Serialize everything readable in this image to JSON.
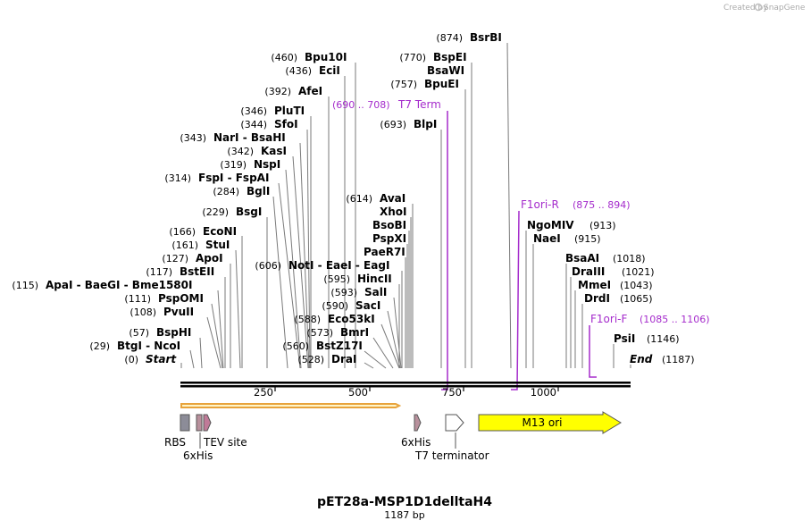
{
  "credit": {
    "created_by": "Created by",
    "brand": "SnapGene"
  },
  "map": {
    "title": "pET28a-MSP1D1delltaH4",
    "length_label": "1187 bp",
    "length": 1187,
    "ticks": [
      "250",
      "500",
      "750",
      "1000"
    ],
    "ends": {
      "start_label": "Start",
      "start_pos": "(0)",
      "end_label": "End",
      "end_pos": "(1187)"
    }
  },
  "enzymes": [
    {
      "pos": "(874)",
      "name": "BsrBI"
    },
    {
      "pos": "(460)",
      "name": "Bpu10I"
    },
    {
      "pos": "(770)",
      "name": "BspEI"
    },
    {
      "pos": "(436)",
      "name": "EciI"
    },
    {
      "pos": "",
      "name": "BsaWI"
    },
    {
      "pos": "(757)",
      "name": "BpuEI"
    },
    {
      "pos": "(392)",
      "name": "AfeI"
    },
    {
      "pos": "(346)",
      "name": "PluTI"
    },
    {
      "pos": "(344)",
      "name": "SfoI"
    },
    {
      "pos": "(693)",
      "name": "BlpI"
    },
    {
      "pos": "(343)",
      "name": "NarI  -  BsaHI"
    },
    {
      "pos": "(342)",
      "name": "KasI"
    },
    {
      "pos": "(319)",
      "name": "NspI"
    },
    {
      "pos": "(314)",
      "name": "FspI  -  FspAI"
    },
    {
      "pos": "(284)",
      "name": "BglI"
    },
    {
      "pos": "(614)",
      "name": "AvaI"
    },
    {
      "pos": "(229)",
      "name": "BsgI"
    },
    {
      "pos": "",
      "name": "XhoI"
    },
    {
      "pos": "",
      "name": "BsoBI"
    },
    {
      "pos": "(166)",
      "name": "EcoNI"
    },
    {
      "pos": "",
      "name": "PspXI"
    },
    {
      "pos": "(161)",
      "name": "StuI"
    },
    {
      "pos": "",
      "name": "PaeR7I"
    },
    {
      "pos": "(127)",
      "name": "ApoI"
    },
    {
      "pos": "(606)",
      "name": "NotI  -  EaeI  -  EagI"
    },
    {
      "pos": "(117)",
      "name": "BstEII"
    },
    {
      "pos": "(595)",
      "name": "HincII"
    },
    {
      "pos": "(115)",
      "name": "ApaI  -  BaeGI  -  Bme1580I"
    },
    {
      "pos": "(593)",
      "name": "SalI"
    },
    {
      "pos": "(111)",
      "name": "PspOMI"
    },
    {
      "pos": "(590)",
      "name": "SacI"
    },
    {
      "pos": "(108)",
      "name": "PvuII"
    },
    {
      "pos": "(588)",
      "name": "Eco53kI"
    },
    {
      "pos": "(57)",
      "name": "BspHI"
    },
    {
      "pos": "(573)",
      "name": "BmrI"
    },
    {
      "pos": "(29)",
      "name": "BtgI  -  NcoI"
    },
    {
      "pos": "(560)",
      "name": "BstZ17I"
    },
    {
      "pos": "(528)",
      "name": "DraI"
    },
    {
      "pos": "(913)",
      "name": "NgoMIV"
    },
    {
      "pos": "(915)",
      "name": "NaeI"
    },
    {
      "pos": "(1018)",
      "name": "BsaAI"
    },
    {
      "pos": "(1021)",
      "name": "DraIII"
    },
    {
      "pos": "(1043)",
      "name": "MmeI"
    },
    {
      "pos": "(1065)",
      "name": "DrdI"
    },
    {
      "pos": "(1146)",
      "name": "PsiI"
    }
  ],
  "primers": [
    {
      "name": "T7 Term",
      "range": "(690 .. 708)"
    },
    {
      "name": "F1ori-R",
      "range": "(875 .. 894)"
    },
    {
      "name": "F1ori-F",
      "range": "(1085 .. 1106)"
    }
  ],
  "features": [
    {
      "label": "RBS"
    },
    {
      "label": "6xHis"
    },
    {
      "label": "TEV site"
    },
    {
      "label": "6xHis"
    },
    {
      "label": "T7 terminator"
    },
    {
      "label": "M13 ori"
    }
  ],
  "colors": {
    "primer": "#a52ccc",
    "orf_outline": "#e8a33c",
    "m13": "#ffff00",
    "rbs": "#8c8c98",
    "his": "#b8909c",
    "tev": "#c07a98"
  }
}
